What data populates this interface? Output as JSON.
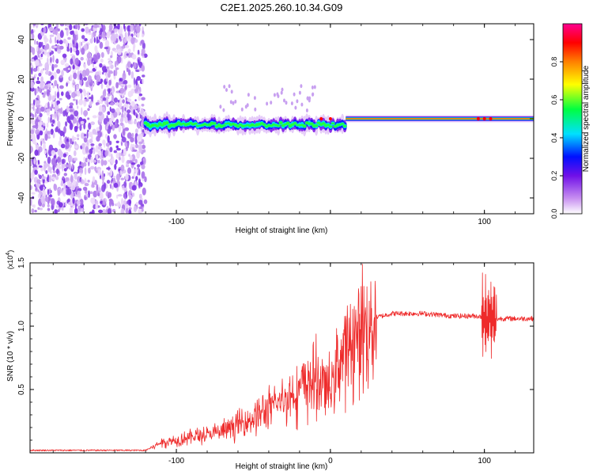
{
  "title": "C2E1.2025.260.10.34.G09",
  "chart_data": [
    {
      "type": "heatmap",
      "xlabel": "Height of straight line (km)",
      "ylabel": "Frequency (Hz)",
      "xlim": [
        -195,
        132
      ],
      "ylim": [
        -48,
        48
      ],
      "xticks": [
        -100,
        0,
        100
      ],
      "xtick_labels": [
        "-100",
        "",
        "100"
      ],
      "yticks": [
        -40,
        -20,
        0,
        20,
        40
      ],
      "ytick_labels": [
        "-40",
        "-20",
        "0",
        "20",
        "40"
      ],
      "colorbar": {
        "label": "Normalized spectral amplitude",
        "range": [
          0,
          1
        ],
        "ticks": [
          0.0,
          0.2,
          0.4,
          0.6,
          0.8
        ],
        "tick_labels": [
          "0.0",
          "0.2",
          "0.4",
          "0.6",
          "0.8"
        ],
        "colors": [
          "#ffffff",
          "#d9b3f0",
          "#8020e0",
          "#0010ff",
          "#00e0ff",
          "#00ff40",
          "#ffff00",
          "#ff8000",
          "#ff0000",
          "#ff0080"
        ]
      },
      "regions": [
        {
          "name": "noise",
          "x_range": [
            -195,
            -120
          ],
          "freq_range": [
            -48,
            48
          ],
          "amplitude": 0.1
        },
        {
          "name": "signal-band",
          "x_range": [
            -120,
            10
          ],
          "center_freq": -3,
          "spread_hz": 4,
          "amplitude": 0.45
        },
        {
          "name": "locked-signal",
          "x_range": [
            10,
            132
          ],
          "center_freq": 0,
          "spread_hz": 1,
          "amplitude": 0.85
        }
      ]
    },
    {
      "type": "line",
      "xlabel": "Height of straight line (km)",
      "ylabel": "SNR (10 * v/v)",
      "yscale_label": "(x10",
      "yscale_exp": "4",
      "xlim": [
        -195,
        132
      ],
      "ylim": [
        0,
        1.5
      ],
      "xticks": [
        -100,
        0,
        100
      ],
      "xtick_labels": [
        "-100",
        "0",
        "100"
      ],
      "yticks": [
        0.5,
        1.0,
        1.5
      ],
      "ytick_labels": [
        "0.5",
        "1.0",
        "1.5"
      ],
      "series": [
        {
          "name": "SNR",
          "color": "#ee2a2a",
          "x": [
            -195,
            -120,
            -110,
            -100,
            -90,
            -80,
            -70,
            -60,
            -50,
            -40,
            -30,
            -20,
            -10,
            0,
            5,
            10,
            15,
            20,
            25,
            30,
            40,
            50,
            60,
            70,
            80,
            90,
            95,
            100,
            105,
            110,
            120,
            132
          ],
          "y": [
            0.02,
            0.02,
            0.08,
            0.1,
            0.13,
            0.14,
            0.17,
            0.22,
            0.28,
            0.34,
            0.42,
            0.5,
            0.58,
            0.5,
            0.72,
            0.82,
            0.88,
            0.95,
            1.02,
            1.07,
            1.1,
            1.1,
            1.1,
            1.09,
            1.08,
            1.08,
            1.08,
            1.07,
            1.05,
            1.06,
            1.06,
            1.06
          ]
        }
      ]
    }
  ]
}
